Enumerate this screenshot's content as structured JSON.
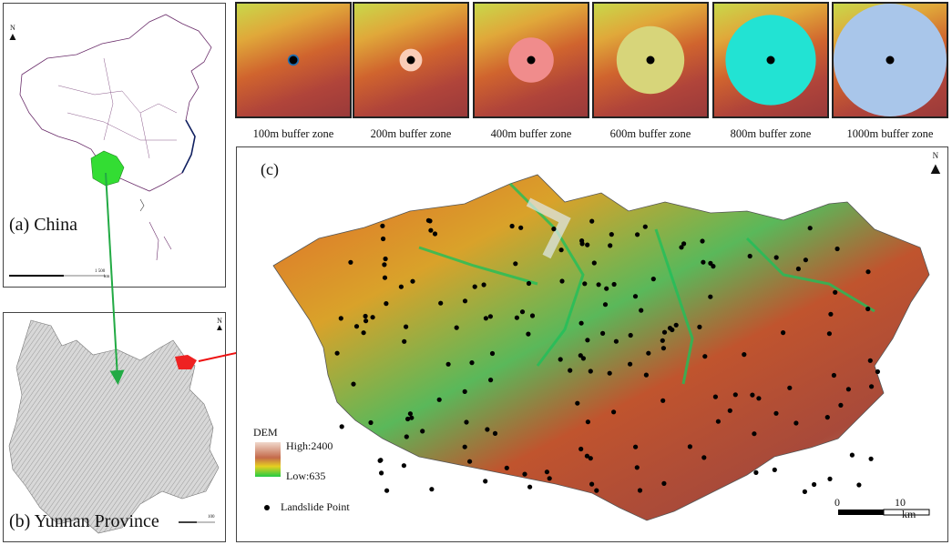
{
  "panel_a": {
    "label": "(a) China",
    "north": "N",
    "scale_end": "1 500",
    "scale_unit": "km"
  },
  "panel_b": {
    "label": "(b) Yunnan Province",
    "north": "N",
    "scale_end": "100"
  },
  "panel_c": {
    "label": "(c)",
    "north": "N"
  },
  "buffers": [
    {
      "caption": "100m buffer zone",
      "color": "#1f6fb0",
      "radius_m": 100
    },
    {
      "caption": "200m buffer zone",
      "color": "#f9cdb8",
      "radius_m": 200
    },
    {
      "caption": "400m buffer zone",
      "color": "#f08c8c",
      "radius_m": 400
    },
    {
      "caption": "600m buffer zone",
      "color": "#d7d57a",
      "radius_m": 600
    },
    {
      "caption": "800m buffer zone",
      "color": "#22e3d3",
      "radius_m": 800
    },
    {
      "caption": "1000m buffer zone",
      "color": "#a9c6ea",
      "radius_m": 1000
    }
  ],
  "legend": {
    "title": "DEM",
    "high": "High:2400",
    "low": "Low:635",
    "point_label": "Landslide Point"
  },
  "scalebar": {
    "start": "0",
    "end": "10",
    "unit": "km"
  },
  "colors": {
    "china_highlight": "#33dd33",
    "yunnan_highlight": "#ee2222",
    "arrow_green": "#22aa44",
    "arrow_red": "#ee1111",
    "point": "#000000"
  },
  "icons": [
    "north-arrow-icon"
  ]
}
